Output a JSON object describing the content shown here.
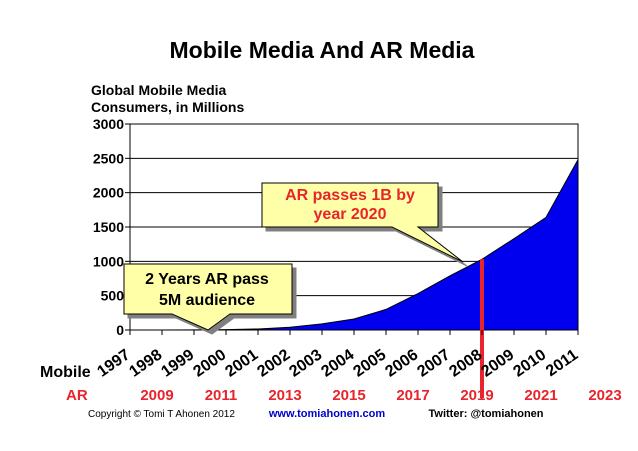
{
  "chart_data": {
    "type": "area",
    "title": "Mobile Media And AR Media",
    "ylabel_lines": [
      "Global Mobile Media",
      "Consumers, in Millions"
    ],
    "ylim": [
      0,
      3000
    ],
    "yticks": [
      0,
      500,
      1000,
      1500,
      2000,
      2500,
      3000
    ],
    "mobile_axis_label": "Mobile",
    "ar_axis_label": "AR",
    "categories": [
      "1997",
      "1998",
      "1999",
      "2000",
      "2001",
      "2002",
      "2003",
      "2004",
      "2005",
      "2006",
      "2007",
      "2008",
      "2009",
      "2010",
      "2011"
    ],
    "ar_years": [
      "2009",
      "2011",
      "2013",
      "2015",
      "2017",
      "2019",
      "2021",
      "2023"
    ],
    "series": [
      {
        "name": "Global Mobile Media Consumers",
        "color": "#0000ee",
        "values": [
          0,
          0,
          2,
          5,
          15,
          40,
          90,
          160,
          300,
          530,
          790,
          1030,
          1330,
          1640,
          2480
        ]
      }
    ],
    "marker": {
      "category": "2008",
      "color": "#e8242c"
    },
    "callouts": [
      {
        "lines": [
          "AR passes 1B by",
          "year 2020"
        ],
        "text_color": "#e8242c",
        "fill": "#ffffa8"
      },
      {
        "lines": [
          "2 Years AR pass",
          "5M audience"
        ],
        "text_color": "#000000",
        "fill": "#ffffa8"
      }
    ],
    "ar_color": "#e8242c",
    "grid": true
  },
  "footer": {
    "copyright": "Copyright © Tomi T Ahonen 2012",
    "website": "www.tomiahonen.com",
    "website_color": "#0000cc",
    "twitter": "Twitter: @tomiahonen"
  }
}
